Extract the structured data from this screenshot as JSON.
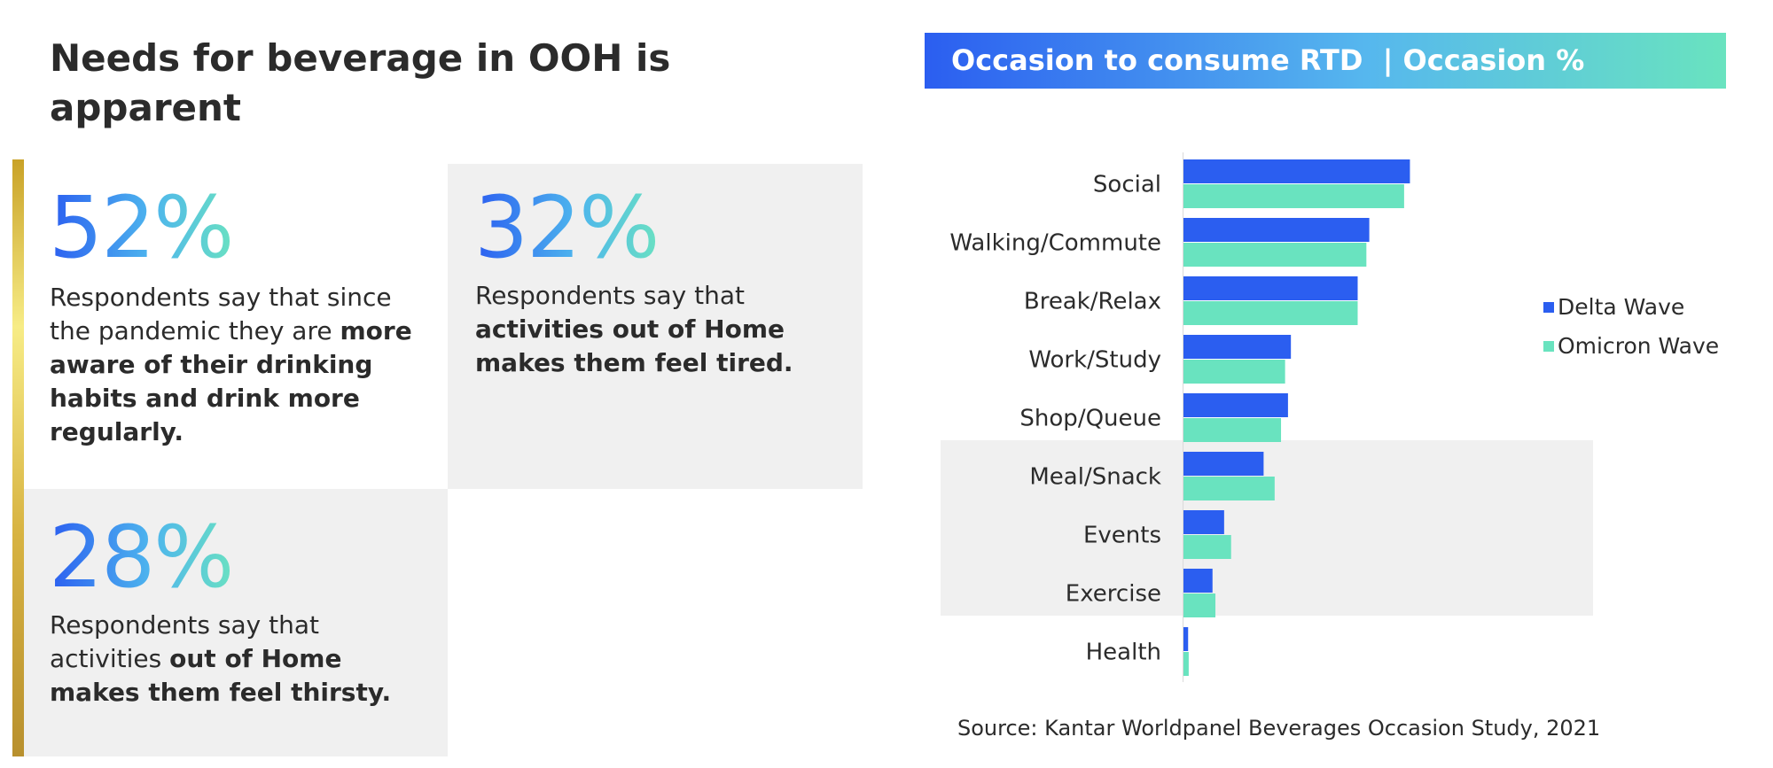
{
  "heading": "Needs for beverage in OOH is apparent",
  "stats": [
    {
      "value": "52%",
      "text_plain_1": "Respondents say that since the pandemic they are ",
      "text_bold": "more aware of their drinking habits and drink more regularly.",
      "text_plain_2": ""
    },
    {
      "value": "32%",
      "text_plain_1": "Respondents say that ",
      "text_bold": "activities out of Home makes them feel tired.",
      "text_plain_2": ""
    },
    {
      "value": "28%",
      "text_plain_1": "Respondents say that activities ",
      "text_bold": "out of Home makes them feel thirsty.",
      "text_plain_2": ""
    }
  ],
  "banner": {
    "title": "Occasion to consume RTD  | Occasion %"
  },
  "source": "Source: Kantar Worldpanel Beverages Occasion Study, 2021",
  "colors": {
    "delta": "#2b5ef0",
    "omicron": "#69e3bf",
    "highlight_band": "#f0f0f0",
    "text": "#2b2b2b"
  },
  "chart_data": {
    "type": "bar",
    "orientation": "horizontal",
    "title": "Occasion to consume RTD  | Occasion %",
    "categories": [
      "Social",
      "Walking/Commute",
      "Break/Relax",
      "Work/Study",
      "Shop/Queue",
      "Meal/Snack",
      "Events",
      "Exercise",
      "Health"
    ],
    "series": [
      {
        "name": "Delta Wave",
        "color": "#2b5ef0",
        "values": [
          39,
          32,
          30,
          18.5,
          18,
          13.8,
          7,
          5,
          0.8
        ]
      },
      {
        "name": "Omicron Wave",
        "color": "#69e3bf",
        "values": [
          38,
          31.5,
          30,
          17.5,
          16.8,
          15.7,
          8.2,
          5.5,
          0.9
        ]
      }
    ],
    "xlim": [
      0,
      100
    ],
    "highlighted_categories": [
      "Meal/Snack",
      "Events",
      "Exercise"
    ],
    "legend_position": "right",
    "grid": false
  }
}
